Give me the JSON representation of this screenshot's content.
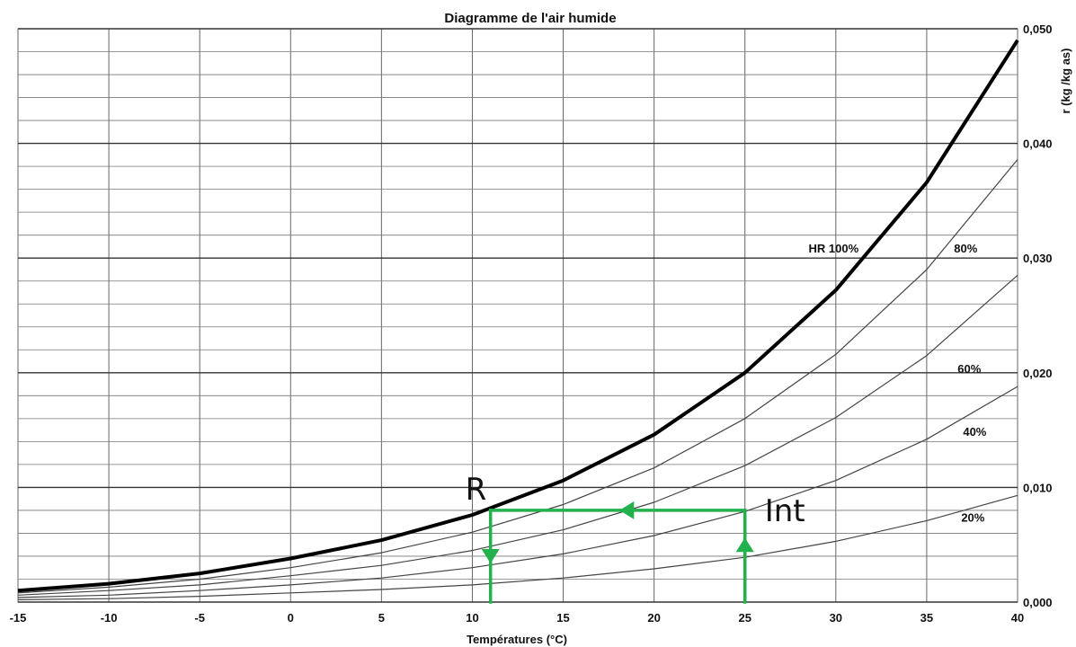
{
  "chart_data": {
    "type": "line",
    "title": "Diagramme de l'air humide",
    "xlabel": "Températures (°C)",
    "ylabel": "r (kg /kg as)",
    "xlim": [
      -15,
      40
    ],
    "ylim": [
      0,
      0.05
    ],
    "x_ticks": [
      "-15",
      "-10",
      "-5",
      "0",
      "5",
      "10",
      "15",
      "20",
      "25",
      "30",
      "35",
      "40"
    ],
    "y_ticks": [
      "0,000",
      "0,010",
      "0,020",
      "0,030",
      "0,040",
      "0,050"
    ],
    "grid": true,
    "x": [
      -15,
      -10,
      -5,
      0,
      5,
      10,
      15,
      20,
      25,
      30,
      35,
      40
    ],
    "series": [
      {
        "name": "HR 100%",
        "label": "HR  100%",
        "emphasis": true,
        "color": "#000000",
        "values": [
          0.001,
          0.0016,
          0.0025,
          0.0038,
          0.0054,
          0.0076,
          0.0106,
          0.0146,
          0.02,
          0.0272,
          0.0366,
          0.049
        ]
      },
      {
        "name": "80%",
        "label": "80%",
        "emphasis": false,
        "color": "#444444",
        "values": [
          0.0008,
          0.0013,
          0.002,
          0.003,
          0.0043,
          0.0061,
          0.0085,
          0.0117,
          0.016,
          0.0216,
          0.029,
          0.0386
        ]
      },
      {
        "name": "60%",
        "label": "60%",
        "emphasis": false,
        "color": "#444444",
        "values": [
          0.0006,
          0.001,
          0.0015,
          0.0023,
          0.0032,
          0.0045,
          0.0063,
          0.0087,
          0.0119,
          0.0161,
          0.0215,
          0.0285
        ]
      },
      {
        "name": "40%",
        "label": "40%",
        "emphasis": false,
        "color": "#444444",
        "values": [
          0.0004,
          0.0006,
          0.001,
          0.0015,
          0.0021,
          0.003,
          0.0042,
          0.0058,
          0.0079,
          0.0106,
          0.0142,
          0.0188
        ]
      },
      {
        "name": "20%",
        "label": "20%",
        "emphasis": false,
        "color": "#444444",
        "values": [
          0.0002,
          0.0003,
          0.0005,
          0.0008,
          0.0011,
          0.0015,
          0.0021,
          0.0029,
          0.0039,
          0.0053,
          0.0071,
          0.0093
        ]
      }
    ],
    "curve_labels": [
      {
        "series": "HR 100%",
        "x": 28.5,
        "y": 0.0305
      },
      {
        "series": "80%",
        "x": 36.5,
        "y": 0.0305
      },
      {
        "series": "60%",
        "x": 36.7,
        "y": 0.02
      },
      {
        "series": "40%",
        "x": 37,
        "y": 0.0145
      },
      {
        "series": "20%",
        "x": 36.9,
        "y": 0.007
      }
    ],
    "annotations": {
      "color": "#22b14c",
      "points": [
        {
          "name": "R",
          "label": "R",
          "x": 11,
          "y": 0.008
        },
        {
          "name": "Int",
          "label": "Int",
          "x": 25,
          "y": 0.008
        }
      ],
      "paths": [
        {
          "from": [
            25,
            0.0
          ],
          "to": [
            25,
            0.008
          ],
          "arrow_at": [
            25,
            0.005
          ]
        },
        {
          "from": [
            25,
            0.008
          ],
          "to": [
            11,
            0.008
          ],
          "arrow_at": [
            18.5,
            0.008
          ]
        },
        {
          "from": [
            11,
            0.008
          ],
          "to": [
            11,
            0.0
          ],
          "arrow_at": [
            11,
            0.004
          ]
        }
      ]
    }
  }
}
